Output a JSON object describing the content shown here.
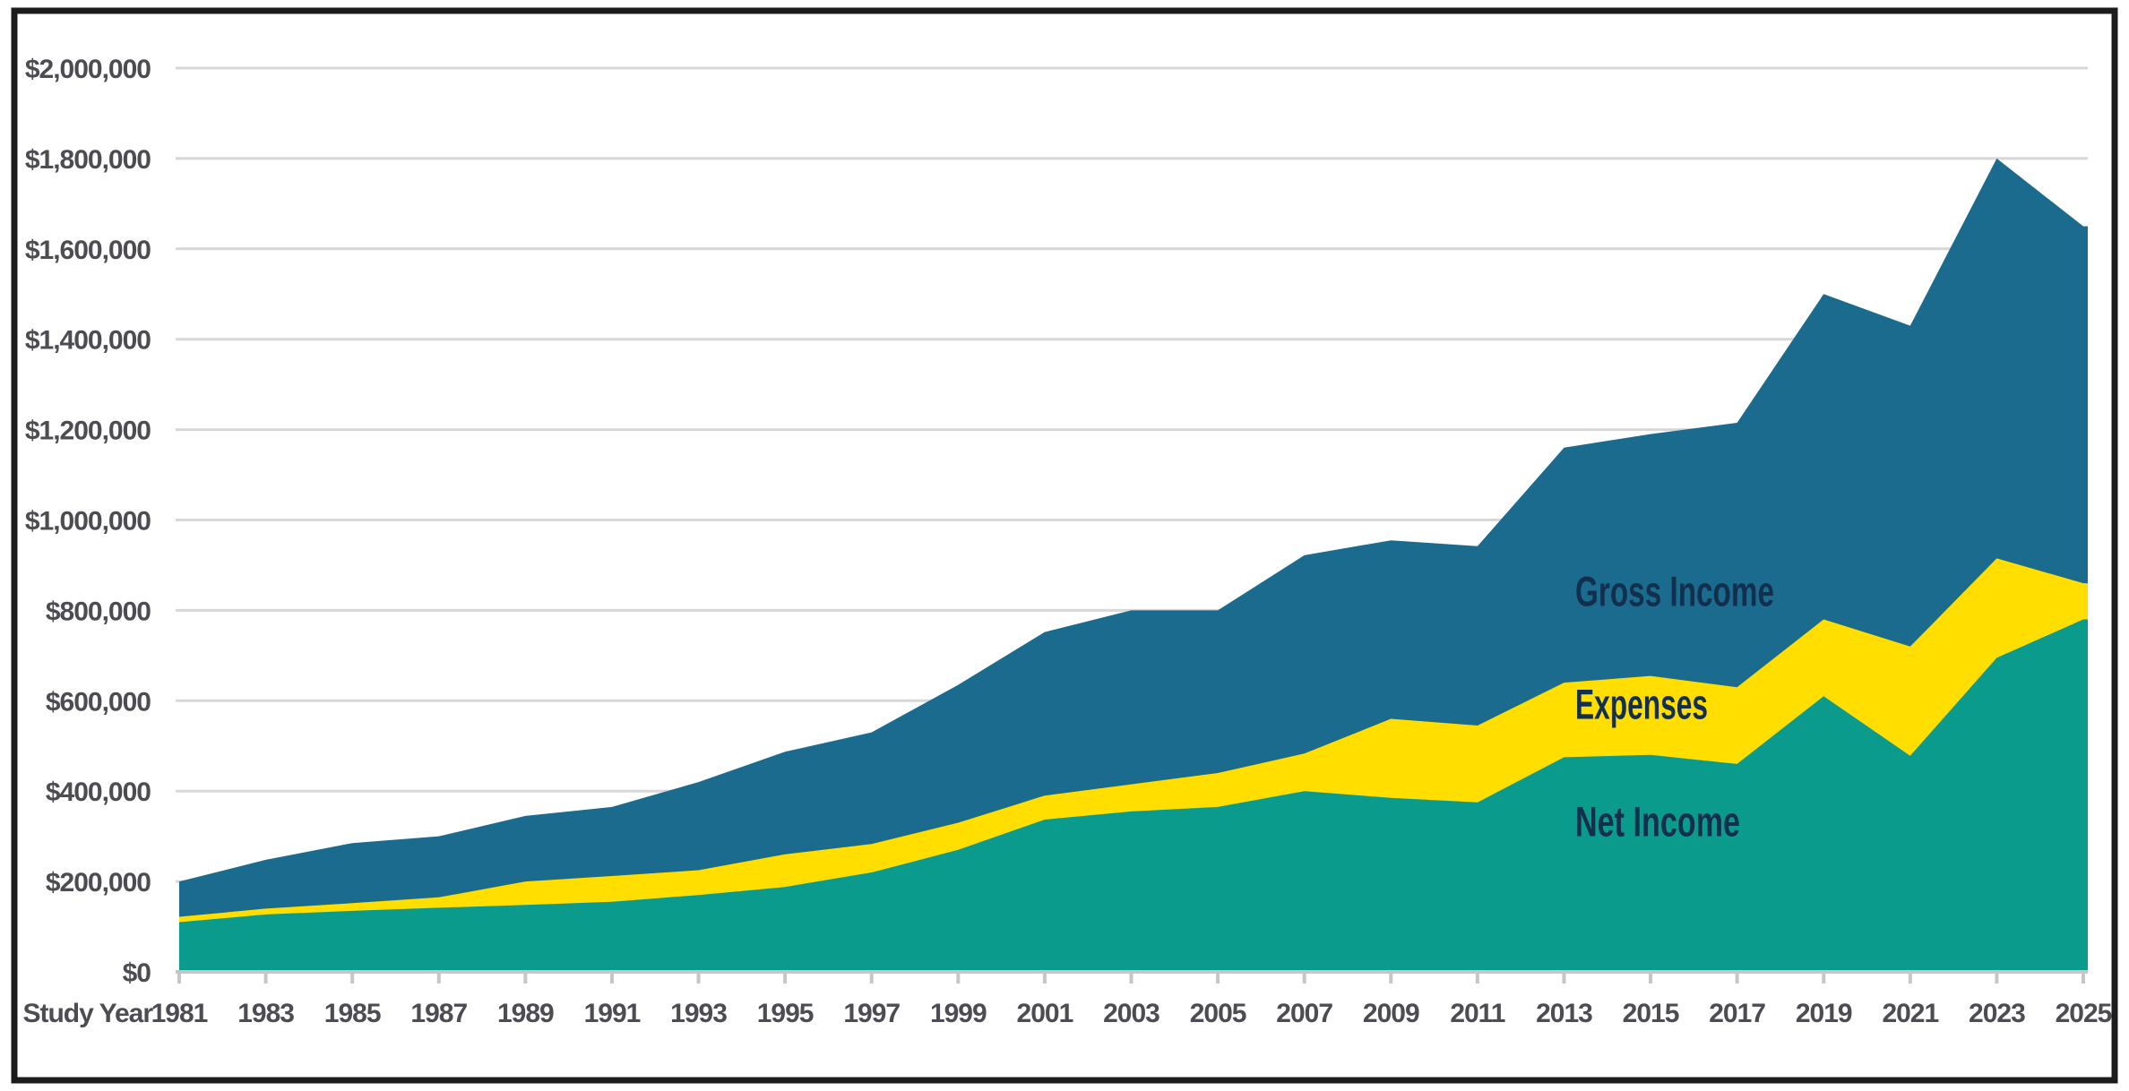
{
  "chart_data": {
    "type": "area",
    "title": "",
    "xlabel": "Study Year",
    "x": [
      1981,
      1983,
      1985,
      1987,
      1989,
      1991,
      1993,
      1995,
      1997,
      1999,
      2001,
      2003,
      2005,
      2007,
      2009,
      2011,
      2013,
      2015,
      2017,
      2019,
      2021,
      2023,
      2025
    ],
    "x_tick_labels": [
      "1981",
      "1983",
      "1985",
      "1987",
      "1989",
      "1991",
      "1993",
      "1995",
      "1997",
      "1999",
      "2001",
      "2003",
      "2005",
      "2007",
      "2009",
      "2011",
      "2013",
      "2015",
      "2017",
      "2019",
      "2021",
      "2023",
      "2025"
    ],
    "series": [
      {
        "name": "Gross Income",
        "role": "total-envelope",
        "color": "#1A6B8D",
        "values": [
          200000,
          248000,
          285000,
          300000,
          345000,
          365000,
          420000,
          487000,
          530000,
          635000,
          752000,
          800000,
          800000,
          922000,
          955000,
          942000,
          1160000,
          1190000,
          1215000,
          1500000,
          1430000,
          1800000,
          1650000
        ]
      },
      {
        "name": "Expenses",
        "role": "band-stacked-on-net",
        "color": "#FFDE00",
        "values": [
          12000,
          13000,
          17000,
          23000,
          52000,
          57000,
          55000,
          72000,
          63000,
          60000,
          53000,
          60000,
          75000,
          83000,
          175000,
          170000,
          165000,
          175000,
          170000,
          170000,
          242000,
          220000,
          80000
        ]
      },
      {
        "name": "Net Income",
        "role": "base",
        "color": "#0A9B8C",
        "values": [
          110000,
          127000,
          135000,
          142000,
          148000,
          155000,
          170000,
          188000,
          220000,
          270000,
          337000,
          355000,
          365000,
          400000,
          385000,
          375000,
          475000,
          480000,
          460000,
          610000,
          478000,
          695000,
          780000
        ]
      }
    ],
    "ylim": [
      0,
      2000000
    ],
    "ytick_step": 200000,
    "y_ticks": [
      {
        "value": 2000000,
        "label": "$2,000,000"
      },
      {
        "value": 1800000,
        "label": "$1,800,000"
      },
      {
        "value": 1600000,
        "label": "$1,600,000"
      },
      {
        "value": 1400000,
        "label": "$1,400,000"
      },
      {
        "value": 1200000,
        "label": "$1,200,000"
      },
      {
        "value": 1000000,
        "label": "$1,000,000"
      },
      {
        "value": 800000,
        "label": "$800,000"
      },
      {
        "value": 600000,
        "label": "$600,000"
      },
      {
        "value": 400000,
        "label": "$400,000"
      },
      {
        "value": 200000,
        "label": "$200,000"
      },
      {
        "value": 0,
        "label": "$0"
      }
    ],
    "grid": true,
    "legend_position": "labels-inside-plot",
    "annotations": [
      {
        "text": "Gross Income",
        "year": 2013.26,
        "value": 810000,
        "text_length": 222
      },
      {
        "text": "Expenses",
        "year": 2013.26,
        "value": 560000,
        "text_length": 148
      },
      {
        "text": "Net Income",
        "year": 2013.26,
        "value": 300000,
        "text_length": 184
      }
    ],
    "colors": {
      "gross_income": "#1A6B8D",
      "expenses": "#FFDE00",
      "net_income": "#0A9B8C",
      "annotation_text": "#12304E",
      "axis_text": "#4C4C52",
      "gridline": "#D7D7D7",
      "axis_line": "#C6C6C6",
      "frame_border": "#1C1C1C"
    }
  }
}
